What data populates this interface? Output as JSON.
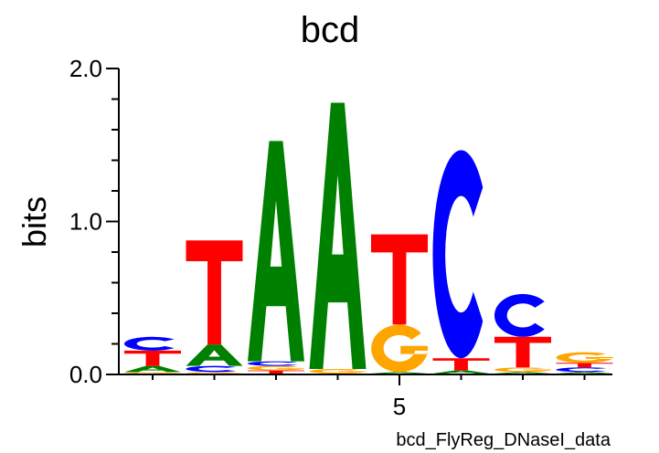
{
  "chart_data": {
    "type": "sequence-logo",
    "title": "bcd",
    "ylabel": "bits",
    "xlabel": "bcd_FlyReg_DNaseI_data",
    "ylim": [
      0,
      2.0
    ],
    "y_ticks": [
      "0.0",
      "1.0",
      "2.0"
    ],
    "y_minor_step": 0.2,
    "x_tick_labels": [
      {
        "position": 5,
        "label": "5"
      }
    ],
    "colors": {
      "A": "#008000",
      "C": "#0000ff",
      "G": "#ffa500",
      "T": "#ff0000"
    },
    "positions": [
      {
        "position": 1,
        "stack": [
          {
            "base": "G",
            "bits": 0.01
          },
          {
            "base": "A",
            "bits": 0.04
          },
          {
            "base": "T",
            "bits": 0.1
          },
          {
            "base": "C",
            "bits": 0.09
          }
        ]
      },
      {
        "position": 2,
        "stack": [
          {
            "base": "G",
            "bits": 0.01
          },
          {
            "base": "C",
            "bits": 0.04
          },
          {
            "base": "A",
            "bits": 0.14
          },
          {
            "base": "T",
            "bits": 0.68
          }
        ]
      },
      {
        "position": 3,
        "stack": [
          {
            "base": "T",
            "bits": 0.02
          },
          {
            "base": "G",
            "bits": 0.03
          },
          {
            "base": "C",
            "bits": 0.03
          },
          {
            "base": "A",
            "bits": 1.44
          }
        ]
      },
      {
        "position": 4,
        "stack": [
          {
            "base": "G",
            "bits": 0.03
          },
          {
            "base": "A",
            "bits": 1.74
          }
        ]
      },
      {
        "position": 5,
        "stack": [
          {
            "base": "A",
            "bits": 0.01
          },
          {
            "base": "G",
            "bits": 0.31
          },
          {
            "base": "T",
            "bits": 0.59
          }
        ]
      },
      {
        "position": 6,
        "stack": [
          {
            "base": "A",
            "bits": 0.02
          },
          {
            "base": "T",
            "bits": 0.08
          },
          {
            "base": "C",
            "bits": 1.36
          }
        ]
      },
      {
        "position": 7,
        "stack": [
          {
            "base": "A",
            "bits": 0.01
          },
          {
            "base": "G",
            "bits": 0.03
          },
          {
            "base": "T",
            "bits": 0.2
          },
          {
            "base": "C",
            "bits": 0.28
          }
        ]
      },
      {
        "position": 8,
        "stack": [
          {
            "base": "A",
            "bits": 0.01
          },
          {
            "base": "C",
            "bits": 0.03
          },
          {
            "base": "T",
            "bits": 0.03
          },
          {
            "base": "G",
            "bits": 0.07
          }
        ]
      }
    ]
  }
}
